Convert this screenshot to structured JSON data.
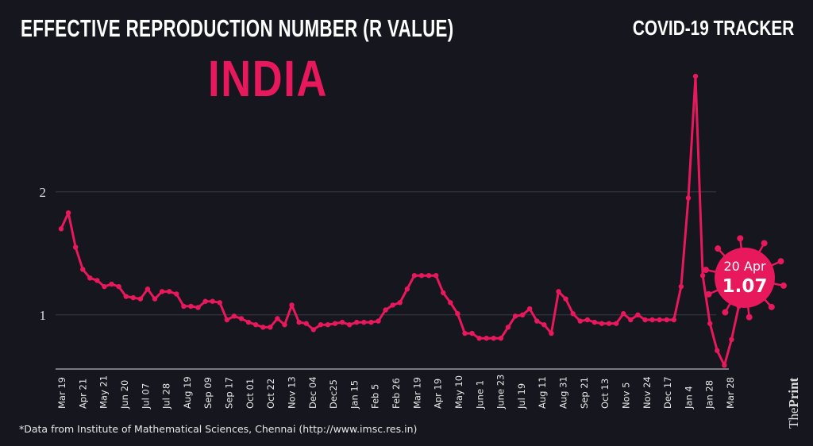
{
  "header": {
    "title": "EFFECTIVE REPRODUCTION NUMBER (R VALUE)",
    "tracker": "COVID-19 TRACKER",
    "country": "INDIA"
  },
  "footer": {
    "source": "*Data from Institute of Mathematical Sciences, Chennai (http://www.imsc.res.in)"
  },
  "logo": {
    "the": "The",
    "print": "Print"
  },
  "colors": {
    "line": "#e8185c",
    "background": "#15161e",
    "grid": "#3a3b44"
  },
  "callout": {
    "icon": "virus-icon",
    "date": "20 Apr",
    "value": "1.07"
  },
  "chart_data": {
    "type": "line",
    "title": "EFFECTIVE REPRODUCTION NUMBER (R VALUE)",
    "xlabel": "",
    "ylabel": "",
    "ylim": [
      0.56,
      3.0
    ],
    "grid": true,
    "y_ticks": [
      "1",
      "2"
    ],
    "x_tick_labels": [
      "Mar 19",
      "Apr 21",
      "May 21",
      "Jun 20",
      "Jul 07",
      "Jul 28",
      "Aug 19",
      "Sep 09",
      "Sep 17",
      "Oct 01",
      "Oct 22",
      "Nov 13",
      "Dec 04",
      "Dec25",
      "Jan 15",
      "Feb 5",
      "Feb 26",
      "Mar 19",
      "Apr 19",
      "May 10",
      "June 1",
      "June 23",
      "Jul 19",
      "Aug 11",
      "Aug 31",
      "Sep 21",
      "Oct 13",
      "Nov 5",
      "Nov 24",
      "Dec 17",
      "Jan 4",
      "Jan 28",
      "Mar 28"
    ],
    "values": [
      1.7,
      1.83,
      1.55,
      1.37,
      1.3,
      1.28,
      1.23,
      1.25,
      1.23,
      1.15,
      1.14,
      1.13,
      1.21,
      1.13,
      1.19,
      1.19,
      1.17,
      1.07,
      1.07,
      1.06,
      1.11,
      1.11,
      1.1,
      0.96,
      0.99,
      0.97,
      0.94,
      0.92,
      0.9,
      0.9,
      0.97,
      0.92,
      1.08,
      0.94,
      0.93,
      0.88,
      0.92,
      0.92,
      0.93,
      0.94,
      0.92,
      0.94,
      0.94,
      0.94,
      0.95,
      1.04,
      1.08,
      1.1,
      1.21,
      1.32,
      1.32,
      1.32,
      1.32,
      1.18,
      1.1,
      1.01,
      0.85,
      0.85,
      0.81,
      0.81,
      0.81,
      0.81,
      0.9,
      0.99,
      1.0,
      1.05,
      0.95,
      0.92,
      0.85,
      1.19,
      1.13,
      1.01,
      0.95,
      0.96,
      0.94,
      0.93,
      0.93,
      0.93,
      1.01,
      0.96,
      1.0,
      0.96,
      0.96,
      0.96,
      0.96,
      0.96,
      1.23,
      1.95,
      2.94,
      1.32,
      0.93,
      0.71,
      0.59,
      0.8,
      1.07
    ]
  }
}
